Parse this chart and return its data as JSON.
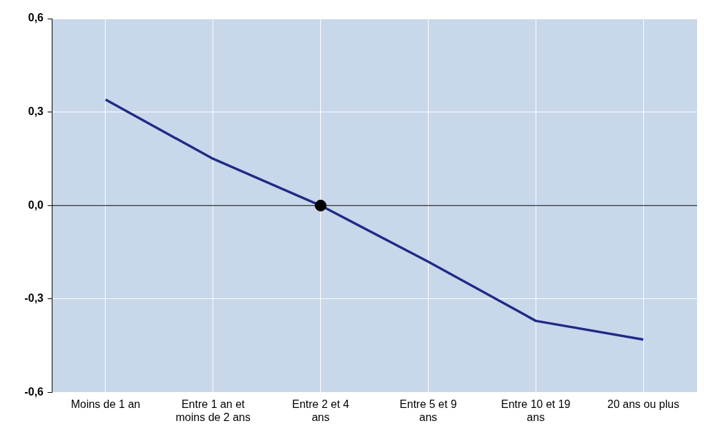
{
  "chart_data": {
    "type": "line",
    "categories": [
      "Moins de 1 an",
      "Entre 1 an et moins de 2 ans",
      "Entre 2 et 4 ans",
      "Entre 5 et 9 ans",
      "Entre 10 et 19 ans",
      "20 ans ou plus"
    ],
    "series": [
      {
        "color": "#1f2a86",
        "values": [
          0.34,
          0.15,
          0,
          -0.18,
          -0.37,
          -0.43
        ],
        "marker": "none"
      },
      {
        "type": "scatter",
        "color": "#000000",
        "x": [
          "Entre 2 et 4 ans"
        ],
        "values": [
          0
        ],
        "marker": "circle"
      }
    ],
    "ylim": [
      -0.6,
      0.6
    ],
    "yticks": [
      {
        "value": -0.6,
        "label": "-0,6"
      },
      {
        "value": -0.3,
        "label": "-0,3"
      },
      {
        "value": 0,
        "label": "0,0"
      },
      {
        "value": 0.3,
        "label": "0,3"
      },
      {
        "value": 0.6,
        "label": "0,6"
      }
    ],
    "ref_lines": [
      {
        "axis": "y",
        "value": 0,
        "color": "#000000"
      }
    ],
    "grid": true,
    "legend": false
  }
}
